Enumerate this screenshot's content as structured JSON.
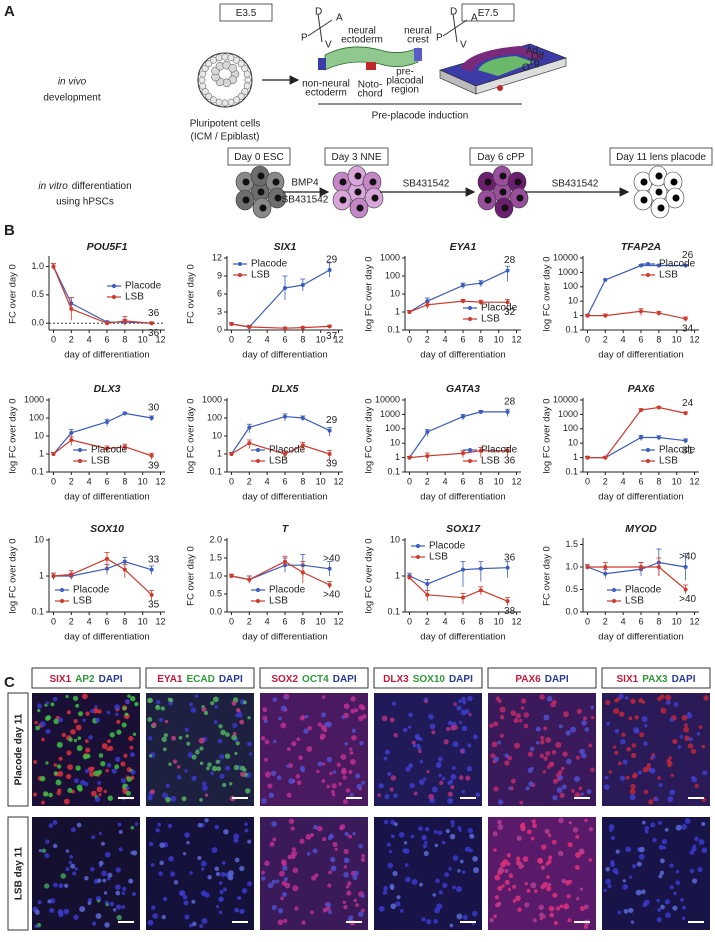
{
  "panel_a": {
    "label": "A",
    "stage_early": "E3.5",
    "stage_late": "E7.5",
    "in_vivo": [
      "in vivo",
      "development"
    ],
    "pluripotent": [
      "Pluripotent cells",
      "(ICM / Epiblast)"
    ],
    "axes": [
      "D",
      "A",
      "P",
      "V"
    ],
    "neural_ectoderm": [
      "neural",
      "ectoderm"
    ],
    "neural_crest": [
      "neural",
      "crest"
    ],
    "non_neural": [
      "non-neural",
      "ectoderm"
    ],
    "notochord": [
      "Noto-",
      "chord"
    ],
    "preplacodal": [
      "pre-",
      "placodal",
      "region"
    ],
    "regions": [
      "Ad",
      "Olf",
      "Tg",
      "O"
    ],
    "induction": "Pre-placode induction",
    "in_vitro": [
      "in vitro",
      "differentiation",
      "using hPSCs"
    ],
    "days": [
      "Day 0 ESC",
      "Day 3 NNE",
      "Day 6 cPP",
      "Day 11 lens placode"
    ],
    "factors": [
      "BMP4",
      "SB431542",
      "SB431542",
      "SB431542"
    ]
  },
  "panel_b_label": "B",
  "chart_data": [
    {
      "type": "line",
      "title": "POU5F1",
      "ylabel": "FC over day 0",
      "xlabel": "day of differentiation",
      "log": false,
      "x": [
        0,
        2,
        6,
        8,
        11
      ],
      "xlim": [
        -0.5,
        12.5
      ],
      "xticks": [
        0,
        2,
        4,
        6,
        8,
        10,
        12
      ],
      "ylim": [
        -0.12,
        1.15
      ],
      "yticks": [
        {
          "value": 0,
          "label": "0.0"
        },
        0.5,
        {
          "value": 1,
          "label": "1.0"
        }
      ],
      "reference_line": 0,
      "legend": "center-right",
      "series": [
        {
          "name": "Placode",
          "color": "#3b5bbf",
          "values": [
            1.0,
            0.35,
            0.02,
            0.02,
            0.0
          ],
          "errors": [
            0.05,
            0.1,
            0.02,
            0.05,
            0.02
          ],
          "end_label": "36"
        },
        {
          "name": "LSB",
          "color": "#d0392b",
          "values": [
            1.0,
            0.25,
            0.0,
            0.04,
            0.0
          ],
          "errors": [
            0.05,
            0.2,
            0.02,
            0.08,
            0.02
          ],
          "end_label": "36"
        }
      ]
    },
    {
      "type": "line",
      "title": "SIX1",
      "ylabel": "FC over day 0",
      "xlabel": "day of differentiation",
      "log": false,
      "x": [
        0,
        2,
        6,
        8,
        11
      ],
      "xlim": [
        -0.5,
        12.5
      ],
      "xticks": [
        0,
        2,
        4,
        6,
        8,
        10,
        12
      ],
      "ylim": [
        0,
        12
      ],
      "yticks": [
        0,
        3,
        6,
        9,
        12
      ],
      "legend": "top-left",
      "series": [
        {
          "name": "Placode",
          "color": "#3b5bbf",
          "values": [
            1,
            0.5,
            7,
            7.5,
            10
          ],
          "errors": [
            0.2,
            0.3,
            2,
            1,
            1.2
          ],
          "end_label": "29"
        },
        {
          "name": "LSB",
          "color": "#d0392b",
          "values": [
            1,
            0.5,
            0.3,
            0.4,
            0.6
          ],
          "errors": [
            0.2,
            0.2,
            0.1,
            0.1,
            0.2
          ],
          "end_label": "37"
        }
      ]
    },
    {
      "type": "line",
      "title": "EYA1",
      "ylabel": "log FC over day 0",
      "xlabel": "day of differentiation",
      "log": true,
      "x": [
        0,
        2,
        6,
        8,
        11
      ],
      "xlim": [
        -0.5,
        12.5
      ],
      "xticks": [
        0,
        2,
        4,
        6,
        8,
        10,
        12
      ],
      "ylim": [
        0.1,
        1000
      ],
      "yticks": [
        0.1,
        1,
        10,
        100,
        1000
      ],
      "legend": "bottom-right",
      "series": [
        {
          "name": "Placode",
          "color": "#3b5bbf",
          "values": [
            1,
            4,
            30,
            40,
            200
          ],
          "errors": [
            0.2,
            2,
            10,
            15,
            150
          ],
          "end_label": "28"
        },
        {
          "name": "LSB",
          "color": "#d0392b",
          "values": [
            1,
            2.5,
            4,
            3.5,
            3.5
          ],
          "errors": [
            0.2,
            1,
            1,
            1,
            1.5
          ],
          "end_label": "32"
        }
      ]
    },
    {
      "type": "line",
      "title": "TFAP2A",
      "ylabel": "log FC over day 0",
      "xlabel": "day of differentiation",
      "log": true,
      "x": [
        0,
        2,
        6,
        8,
        11
      ],
      "xlim": [
        -0.5,
        12.5
      ],
      "xticks": [
        0,
        2,
        4,
        6,
        8,
        10,
        12
      ],
      "ylim": [
        0.1,
        10000
      ],
      "yticks": [
        0.1,
        1,
        10,
        100,
        1000,
        10000
      ],
      "legend": "top-right",
      "series": [
        {
          "name": "Placode",
          "color": "#3b5bbf",
          "values": [
            1,
            300,
            3000,
            3000,
            3000
          ],
          "errors": [
            0.2,
            50,
            500,
            500,
            500
          ],
          "end_label": "26"
        },
        {
          "name": "LSB",
          "color": "#d0392b",
          "values": [
            1,
            1,
            2,
            1.5,
            0.6
          ],
          "errors": [
            0.2,
            0.3,
            1,
            0.5,
            0.2
          ],
          "end_label": "34"
        }
      ]
    },
    {
      "type": "line",
      "title": "DLX3",
      "ylabel": "log FC over day 0",
      "xlabel": "day of differentiation",
      "log": true,
      "x": [
        0,
        2,
        6,
        8,
        11
      ],
      "xlim": [
        -0.5,
        12.5
      ],
      "xticks": [
        0,
        2,
        4,
        6,
        8,
        10,
        12
      ],
      "ylim": [
        0.1,
        1000
      ],
      "yticks": [
        0.1,
        1,
        10,
        100,
        1000
      ],
      "legend": "bottom-center",
      "series": [
        {
          "name": "Placode",
          "color": "#3b5bbf",
          "values": [
            1,
            15,
            60,
            180,
            100
          ],
          "errors": [
            0.2,
            8,
            25,
            30,
            30
          ],
          "end_label": "30"
        },
        {
          "name": "LSB",
          "color": "#d0392b",
          "values": [
            1,
            6,
            2,
            2.5,
            0.8
          ],
          "errors": [
            0.2,
            3,
            0.8,
            1,
            0.3
          ],
          "end_label": "39"
        }
      ]
    },
    {
      "type": "line",
      "title": "DLX5",
      "ylabel": "log FC over day 0",
      "xlabel": "day of differentiation",
      "log": true,
      "x": [
        0,
        2,
        6,
        8,
        11
      ],
      "xlim": [
        -0.5,
        12.5
      ],
      "xticks": [
        0,
        2,
        4,
        6,
        8,
        10,
        12
      ],
      "ylim": [
        0.1,
        1000
      ],
      "yticks": [
        0.1,
        1,
        10,
        100,
        1000
      ],
      "legend": "bottom-center",
      "series": [
        {
          "name": "Placode",
          "color": "#3b5bbf",
          "values": [
            1,
            30,
            120,
            100,
            20
          ],
          "errors": [
            0.2,
            15,
            50,
            30,
            10
          ],
          "end_label": "29"
        },
        {
          "name": "LSB",
          "color": "#d0392b",
          "values": [
            1,
            4,
            1,
            3,
            1
          ],
          "errors": [
            0.2,
            2,
            0.5,
            1.5,
            0.6
          ],
          "end_label": "39"
        }
      ]
    },
    {
      "type": "line",
      "title": "GATA3",
      "ylabel": "log FC over day 0",
      "xlabel": "day of differentiation",
      "log": true,
      "x": [
        0,
        2,
        6,
        8,
        11
      ],
      "xlim": [
        -0.5,
        12.5
      ],
      "xticks": [
        0,
        2,
        4,
        6,
        8,
        10,
        12
      ],
      "ylim": [
        0.1,
        10000
      ],
      "yticks": [
        0.1,
        1,
        10,
        100,
        1000,
        10000
      ],
      "legend": "bottom-right",
      "series": [
        {
          "name": "Placode",
          "color": "#3b5bbf",
          "values": [
            1,
            60,
            700,
            1500,
            1500
          ],
          "errors": [
            0.2,
            30,
            300,
            400,
            800
          ],
          "end_label": "28"
        },
        {
          "name": "LSB",
          "color": "#d0392b",
          "values": [
            1,
            1.3,
            2,
            3,
            3
          ],
          "errors": [
            0.2,
            0.8,
            1,
            2,
            2
          ],
          "end_label": "36"
        }
      ]
    },
    {
      "type": "line",
      "title": "PAX6",
      "ylabel": "log FC over day 0",
      "xlabel": "day of differentiation",
      "log": true,
      "x": [
        0,
        2,
        6,
        8,
        11
      ],
      "xlim": [
        -0.5,
        12.5
      ],
      "xticks": [
        0,
        2,
        4,
        6,
        8,
        10,
        12
      ],
      "ylim": [
        0.1,
        10000
      ],
      "yticks": [
        0.1,
        1,
        10,
        100,
        1000,
        10000
      ],
      "legend": "bottom-right",
      "series": [
        {
          "name": "Placode",
          "color": "#3b5bbf",
          "values": [
            1,
            1,
            25,
            25,
            15
          ],
          "errors": [
            0.2,
            0.2,
            10,
            8,
            5
          ],
          "end_label": "31"
        },
        {
          "name": "LSB",
          "color": "#d0392b",
          "values": [
            1,
            1,
            2000,
            3000,
            1200
          ],
          "errors": [
            0.2,
            0.2,
            500,
            500,
            300
          ],
          "end_label": "24"
        }
      ]
    },
    {
      "type": "line",
      "title": "SOX10",
      "ylabel": "log FC over day 0",
      "xlabel": "day of differentiation",
      "log": true,
      "x": [
        0,
        2,
        6,
        8,
        11
      ],
      "xlim": [
        -0.5,
        12.5
      ],
      "xticks": [
        0,
        2,
        4,
        6,
        8,
        10,
        12
      ],
      "ylim": [
        0.1,
        10
      ],
      "yticks": [
        0.1,
        1,
        10
      ],
      "legend": "bottom-left",
      "series": [
        {
          "name": "Placode",
          "color": "#3b5bbf",
          "values": [
            1,
            1,
            1.6,
            2.5,
            1.5
          ],
          "errors": [
            0.2,
            0.2,
            0.5,
            0.8,
            0.4
          ],
          "end_label": "33"
        },
        {
          "name": "LSB",
          "color": "#d0392b",
          "values": [
            1,
            1.1,
            3,
            1.5,
            0.3
          ],
          "errors": [
            0.2,
            0.3,
            1.5,
            0.6,
            0.1
          ],
          "end_label": "35"
        }
      ]
    },
    {
      "type": "line",
      "title": "T",
      "ylabel": "FC over day 0",
      "xlabel": "day of differentiation",
      "log": false,
      "x": [
        0,
        2,
        6,
        8,
        11
      ],
      "xlim": [
        -0.5,
        12.5
      ],
      "xticks": [
        0,
        2,
        4,
        6,
        8,
        10,
        12
      ],
      "ylim": [
        0,
        2
      ],
      "yticks": [
        {
          "value": 0,
          "label": "0.0"
        },
        0.5,
        {
          "value": 1,
          "label": "1.0"
        },
        1.5,
        {
          "value": 2,
          "label": "2.0"
        }
      ],
      "legend": "bottom-center",
      "series": [
        {
          "name": "Placode",
          "color": "#3b5bbf",
          "values": [
            1,
            0.9,
            1.3,
            1.3,
            1.2
          ],
          "errors": [
            0.05,
            0.1,
            0.2,
            0.3,
            0.2
          ],
          "end_label": ">40"
        },
        {
          "name": "LSB",
          "color": "#d0392b",
          "values": [
            1,
            0.9,
            1.4,
            1.1,
            0.75
          ],
          "errors": [
            0.05,
            0.1,
            0.15,
            0.3,
            0.1
          ],
          "end_label": ">40"
        }
      ]
    },
    {
      "type": "line",
      "title": "SOX17",
      "ylabel": "log FC over day 0",
      "xlabel": "day of differentiation",
      "log": true,
      "x": [
        0,
        2,
        6,
        8,
        11
      ],
      "xlim": [
        -0.5,
        12.5
      ],
      "xticks": [
        0,
        2,
        4,
        6,
        8,
        10,
        12
      ],
      "ylim": [
        0.1,
        10
      ],
      "yticks": [
        0.1,
        1,
        10
      ],
      "legend": "top-left",
      "series": [
        {
          "name": "Placode",
          "color": "#3b5bbf",
          "values": [
            1,
            0.6,
            1.5,
            1.6,
            1.7
          ],
          "errors": [
            0.2,
            0.2,
            1,
            0.9,
            0.8
          ],
          "end_label": "36"
        },
        {
          "name": "LSB",
          "color": "#d0392b",
          "values": [
            0.9,
            0.3,
            0.25,
            0.4,
            0.2
          ],
          "errors": [
            0.1,
            0.1,
            0.08,
            0.1,
            0.05
          ],
          "end_label": "38"
        }
      ]
    },
    {
      "type": "line",
      "title": "MYOD",
      "ylabel": "FC over day 0",
      "xlabel": "day of differentiation",
      "log": false,
      "x": [
        0,
        2,
        6,
        8,
        11
      ],
      "xlim": [
        -0.5,
        12.5
      ],
      "xticks": [
        0,
        2,
        4,
        6,
        8,
        10,
        12
      ],
      "ylim": [
        0,
        1.6
      ],
      "yticks": [
        {
          "value": 0,
          "label": "0.0"
        },
        0.5,
        {
          "value": 1,
          "label": "1.0"
        },
        1.5
      ],
      "legend": "bottom-center",
      "series": [
        {
          "name": "Placode",
          "color": "#3b5bbf",
          "values": [
            1,
            0.85,
            0.95,
            1.1,
            1.0
          ],
          "errors": [
            0.05,
            0.1,
            0.15,
            0.3,
            0.3
          ],
          "end_label": ">40"
        },
        {
          "name": "LSB",
          "color": "#d0392b",
          "values": [
            1,
            1.0,
            1.0,
            1.0,
            0.5
          ],
          "errors": [
            0.05,
            0.1,
            0.1,
            0.2,
            0.1
          ],
          "end_label": ">40"
        }
      ]
    }
  ],
  "panel_c": {
    "label": "C",
    "columns": [
      [
        {
          "text": "SIX1",
          "color": "#c8193c"
        },
        {
          "text": "AP2",
          "color": "#2e9a3a"
        },
        {
          "text": "DAPI",
          "color": "#2a3a9a"
        }
      ],
      [
        {
          "text": "EYA1",
          "color": "#c8193c"
        },
        {
          "text": "ECAD",
          "color": "#2e9a3a"
        },
        {
          "text": "DAPI",
          "color": "#2a3a9a"
        }
      ],
      [
        {
          "text": "SOX2",
          "color": "#c8193c"
        },
        {
          "text": "OCT4",
          "color": "#2e9a3a"
        },
        {
          "text": "DAPI",
          "color": "#2a3a9a"
        }
      ],
      [
        {
          "text": "DLX3",
          "color": "#c8193c"
        },
        {
          "text": "SOX10",
          "color": "#2e9a3a"
        },
        {
          "text": "DAPI",
          "color": "#2a3a9a"
        }
      ],
      [
        {
          "text": "PAX6",
          "color": "#c8193c"
        },
        {
          "text": "DAPI",
          "color": "#2a3a9a"
        }
      ],
      [
        {
          "text": "SIX1",
          "color": "#c8193c"
        },
        {
          "text": "PAX3",
          "color": "#2e9a3a"
        },
        {
          "text": "DAPI",
          "color": "#2a3a9a"
        }
      ]
    ],
    "rows": [
      "Placode day 11",
      "LSB day 11"
    ]
  }
}
